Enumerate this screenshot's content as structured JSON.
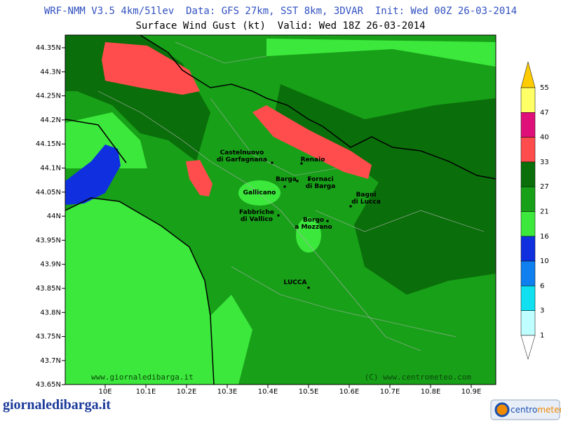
{
  "header": {
    "line1": "WRF-NMM V3.5 4km/51lev  Data: GFS 27km, SST 8km, 3DVAR  Init: Wed 00Z 26-03-2014",
    "line2": "Surface Wind Gust (kt)  Valid: Wed 18Z 26-03-2014"
  },
  "axes": {
    "x_labels": [
      "10E",
      "10.1E",
      "10.2E",
      "10.3E",
      "10.4E",
      "10.5E",
      "10.6E",
      "10.7E",
      "10.8E",
      "10.9E"
    ],
    "y_labels": [
      "44.35N",
      "44.3N",
      "44.25N",
      "44.2N",
      "44.15N",
      "44.1N",
      "44.05N",
      "44N",
      "43.95N",
      "43.9N",
      "43.85N",
      "43.8N",
      "43.75N",
      "43.7N",
      "43.65N"
    ]
  },
  "colorbar": {
    "labels": [
      55,
      47,
      40,
      33,
      27,
      21,
      16,
      10,
      6,
      3,
      1
    ],
    "colors": [
      "#ffcc00",
      "#ffff66",
      "#e0107a",
      "#ff4d4d",
      "#0a6e0a",
      "#18a018",
      "#3ce83c",
      "#1030e0",
      "#1080f0",
      "#10e0f0",
      "#c0ffff",
      "#ffffff"
    ]
  },
  "towns": [
    {
      "lines": [
        "Castelnuovo",
        "di Garfagnana"
      ]
    },
    {
      "lines": [
        "Renaio"
      ]
    },
    {
      "lines": [
        "Barga"
      ]
    },
    {
      "lines": [
        "Fornaci",
        "di Barga"
      ]
    },
    {
      "lines": [
        "Gallicano"
      ]
    },
    {
      "lines": [
        "Bagni",
        "di Lucca"
      ]
    },
    {
      "lines": [
        "Fabbriche",
        "di Vallico"
      ]
    },
    {
      "lines": [
        "Borgo",
        "a Mozzano"
      ]
    },
    {
      "lines": [
        "LUCCA"
      ]
    }
  ],
  "watermarks": {
    "left": "www.giornaledibarga.it",
    "right": "(C) www.centrometeo.com"
  },
  "logos": {
    "left": "giornaledibarga.it",
    "right_a": "centro",
    "right_b": "meteo"
  }
}
